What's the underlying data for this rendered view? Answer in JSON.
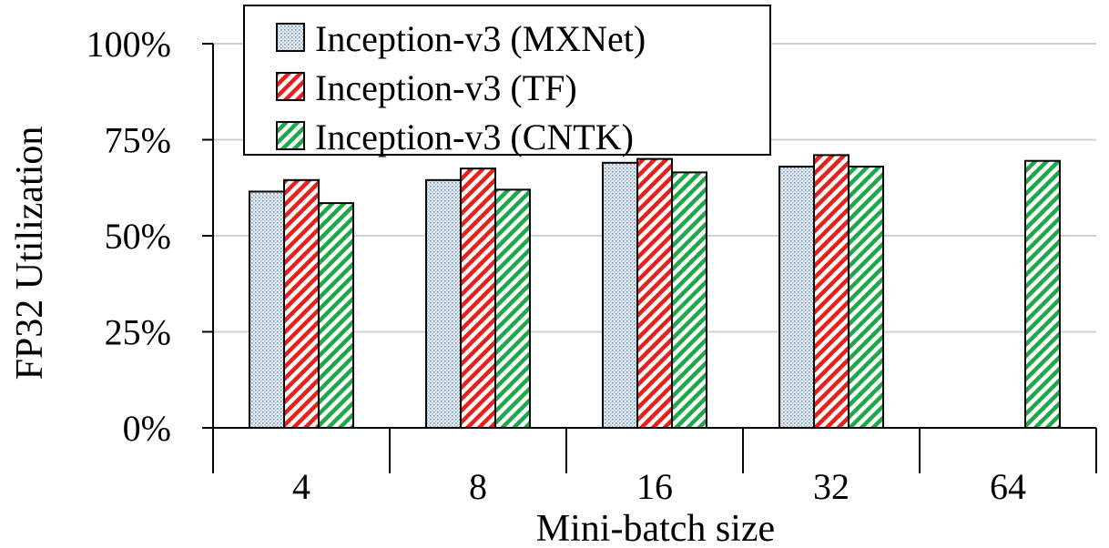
{
  "chart_data": {
    "type": "bar",
    "title": "",
    "xlabel": "Mini-batch size",
    "ylabel": "FP32 Utilization",
    "categories": [
      "4",
      "8",
      "16",
      "32",
      "64"
    ],
    "ylim": [
      0,
      100
    ],
    "yticks": [
      0,
      25,
      50,
      75,
      100
    ],
    "ytick_labels": [
      "0%",
      "25%",
      "50%",
      "75%",
      "100%"
    ],
    "grid": "horizontal",
    "legend_position": "top-left",
    "series": [
      {
        "name": "Inception-v3 (MXNet)",
        "values": [
          61.5,
          64.5,
          69,
          68,
          null
        ],
        "color": "#d9e7f2",
        "pattern": "dots"
      },
      {
        "name": "Inception-v3 (TF)",
        "values": [
          64.5,
          67.5,
          70,
          71,
          null
        ],
        "color": "#e8201c",
        "pattern": "diagonal-stripes"
      },
      {
        "name": "Inception-v3 (CNTK)",
        "values": [
          58.5,
          62,
          66.5,
          68,
          69.5
        ],
        "color": "#1fa84a",
        "pattern": "diagonal-stripes"
      }
    ]
  }
}
